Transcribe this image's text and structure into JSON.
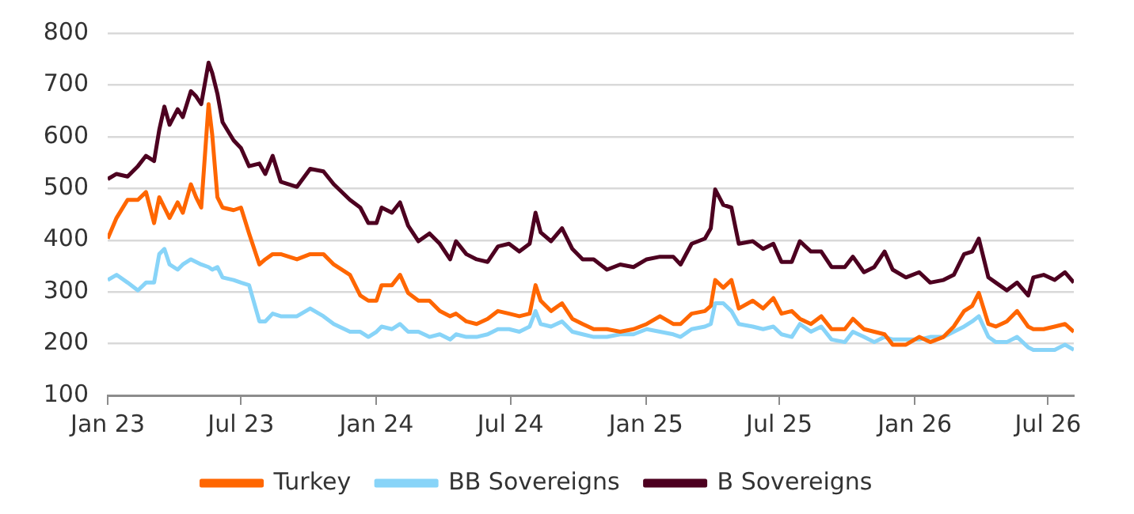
{
  "chart_data": {
    "type": "line",
    "x": [
      "2023-01-01",
      "2023-01-13",
      "2023-01-28",
      "2023-02-11",
      "2023-02-22",
      "2023-03-05",
      "2023-03-12",
      "2023-03-19",
      "2023-03-26",
      "2023-04-06",
      "2023-04-13",
      "2023-04-24",
      "2023-05-01",
      "2023-05-08",
      "2023-05-18",
      "2023-05-23",
      "2023-05-30",
      "2023-06-06",
      "2023-06-21",
      "2023-07-01",
      "2023-07-12",
      "2023-07-26",
      "2023-08-03",
      "2023-08-13",
      "2023-08-24",
      "2023-09-15",
      "2023-10-03",
      "2023-10-21",
      "2023-11-04",
      "2023-11-26",
      "2023-12-10",
      "2023-12-21",
      "2024-01-01",
      "2024-01-08",
      "2024-01-22",
      "2024-02-02",
      "2024-02-13",
      "2024-02-27",
      "2024-03-13",
      "2024-03-27",
      "2024-04-10",
      "2024-04-18",
      "2024-05-02",
      "2024-05-16",
      "2024-05-31",
      "2024-06-14",
      "2024-06-29",
      "2024-07-13",
      "2024-07-27",
      "2024-08-04",
      "2024-08-11",
      "2024-08-25",
      "2024-09-09",
      "2024-09-23",
      "2024-10-07",
      "2024-10-22",
      "2024-11-09",
      "2024-11-27",
      "2024-12-15",
      "2025-01-02",
      "2025-01-20",
      "2025-02-07",
      "2025-02-17",
      "2025-03-04",
      "2025-03-22",
      "2025-03-30",
      "2025-04-05",
      "2025-04-16",
      "2025-04-27",
      "2025-05-07",
      "2025-05-26",
      "2025-06-09",
      "2025-06-23",
      "2025-07-04",
      "2025-07-18",
      "2025-07-29",
      "2025-08-13",
      "2025-08-27",
      "2025-09-10",
      "2025-09-28",
      "2025-10-09",
      "2025-10-24",
      "2025-11-07",
      "2025-11-21",
      "2025-12-02",
      "2025-12-20",
      "2026-01-07",
      "2026-01-22",
      "2026-02-09",
      "2026-02-23",
      "2026-03-09",
      "2026-03-20",
      "2026-03-29",
      "2026-04-11",
      "2026-04-21",
      "2026-05-06",
      "2026-05-20",
      "2026-06-04",
      "2026-06-11",
      "2026-06-25",
      "2026-07-10",
      "2026-07-24",
      "2026-08-05"
    ],
    "series": [
      {
        "name": "Turkey",
        "color": "#ff6600",
        "values": [
          403,
          443,
          478,
          478,
          493,
          433,
          483,
          463,
          443,
          473,
          453,
          508,
          483,
          463,
          663,
          603,
          483,
          463,
          458,
          463,
          413,
          353,
          363,
          373,
          373,
          363,
          373,
          373,
          353,
          333,
          293,
          283,
          283,
          313,
          313,
          333,
          298,
          283,
          283,
          263,
          253,
          258,
          243,
          238,
          248,
          263,
          258,
          253,
          258,
          313,
          283,
          263,
          278,
          248,
          238,
          228,
          228,
          223,
          228,
          238,
          253,
          238,
          238,
          258,
          263,
          273,
          323,
          308,
          323,
          268,
          283,
          268,
          288,
          258,
          263,
          248,
          238,
          253,
          228,
          228,
          248,
          228,
          223,
          218,
          198,
          198,
          213,
          203,
          213,
          233,
          263,
          273,
          298,
          238,
          233,
          243,
          263,
          233,
          228,
          228,
          233,
          238,
          223
        ]
      },
      {
        "name": "BB Sovereigns",
        "color": "#88d4f8",
        "values": [
          323,
          333,
          318,
          303,
          318,
          318,
          373,
          383,
          353,
          343,
          353,
          363,
          358,
          353,
          348,
          343,
          348,
          328,
          323,
          318,
          313,
          243,
          243,
          258,
          253,
          253,
          268,
          253,
          238,
          223,
          223,
          213,
          223,
          233,
          228,
          238,
          223,
          223,
          213,
          218,
          208,
          218,
          213,
          213,
          218,
          228,
          228,
          223,
          233,
          263,
          238,
          233,
          243,
          223,
          218,
          213,
          213,
          218,
          218,
          228,
          223,
          218,
          213,
          228,
          233,
          238,
          278,
          278,
          263,
          238,
          233,
          228,
          233,
          218,
          213,
          238,
          223,
          233,
          208,
          203,
          223,
          213,
          203,
          213,
          208,
          208,
          208,
          213,
          213,
          223,
          233,
          243,
          253,
          213,
          203,
          203,
          213,
          193,
          188,
          188,
          188,
          198,
          188
        ]
      },
      {
        "name": "B Sovereigns",
        "color": "#4d0020",
        "values": [
          518,
          528,
          523,
          543,
          563,
          553,
          613,
          658,
          623,
          653,
          638,
          688,
          678,
          663,
          743,
          723,
          683,
          628,
          593,
          578,
          543,
          548,
          528,
          563,
          513,
          503,
          538,
          533,
          508,
          478,
          463,
          433,
          433,
          463,
          453,
          473,
          428,
          398,
          413,
          393,
          363,
          398,
          373,
          363,
          358,
          388,
          393,
          378,
          393,
          453,
          415,
          398,
          423,
          383,
          363,
          363,
          343,
          353,
          348,
          363,
          368,
          368,
          353,
          393,
          403,
          423,
          498,
          468,
          463,
          393,
          398,
          383,
          393,
          358,
          358,
          398,
          378,
          378,
          348,
          348,
          368,
          338,
          348,
          378,
          343,
          328,
          338,
          318,
          323,
          333,
          373,
          378,
          403,
          328,
          318,
          303,
          318,
          293,
          328,
          333,
          323,
          338,
          318
        ]
      }
    ],
    "xlim": [
      "2023-01-01",
      "2026-08-05"
    ],
    "xticks": [
      {
        "value": "2023-01-01",
        "label": "Jan 23"
      },
      {
        "value": "2023-07-01",
        "label": "Jul 23"
      },
      {
        "value": "2024-01-01",
        "label": "Jan 24"
      },
      {
        "value": "2024-07-01",
        "label": "Jul 24"
      },
      {
        "value": "2025-01-01",
        "label": "Jan 25"
      },
      {
        "value": "2025-07-01",
        "label": "Jul 25"
      },
      {
        "value": "2026-01-01",
        "label": "Jan 26"
      },
      {
        "value": "2026-07-01",
        "label": "Jul 26"
      }
    ],
    "ylim": [
      100,
      800
    ],
    "yticks": [
      100,
      200,
      300,
      400,
      500,
      600,
      700,
      800
    ],
    "grid": "y",
    "legend": "bottom",
    "marker": "none",
    "line_style": "solid"
  }
}
